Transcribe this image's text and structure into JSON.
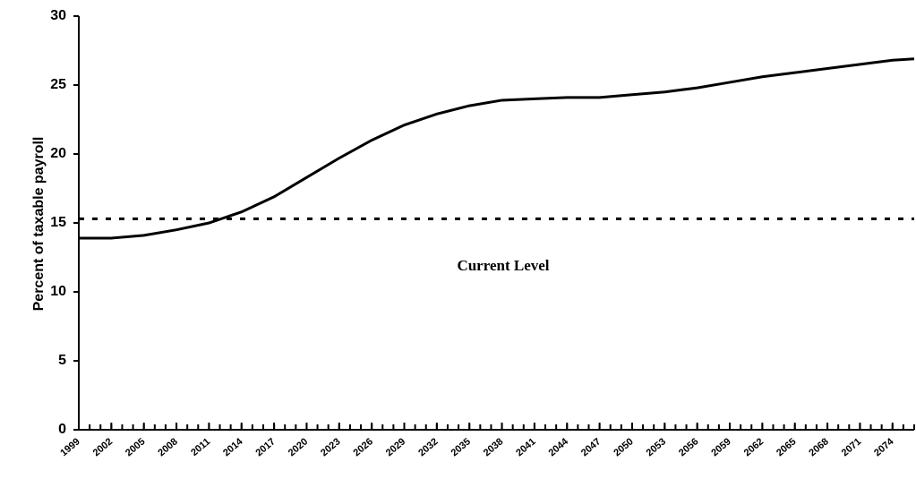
{
  "chart_data": {
    "type": "line",
    "ylabel": "Percent of taxable payroll",
    "annotation": "Current Level",
    "current_level": 15.3,
    "color": "#000000",
    "x": [
      1999,
      2002,
      2005,
      2008,
      2011,
      2014,
      2017,
      2020,
      2023,
      2026,
      2029,
      2032,
      2035,
      2038,
      2041,
      2044,
      2047,
      2050,
      2053,
      2056,
      2059,
      2062,
      2065,
      2068,
      2071,
      2074,
      2076
    ],
    "values": [
      13.9,
      13.9,
      14.1,
      14.5,
      15.0,
      15.8,
      16.9,
      18.3,
      19.7,
      21.0,
      22.1,
      22.9,
      23.5,
      23.9,
      24.0,
      24.1,
      24.1,
      24.3,
      24.5,
      24.8,
      25.2,
      25.6,
      25.9,
      26.2,
      26.5,
      26.8,
      26.9
    ],
    "xlim": [
      1999,
      2076
    ],
    "xticks": [
      1999,
      2002,
      2005,
      2008,
      2011,
      2014,
      2017,
      2020,
      2023,
      2026,
      2029,
      2032,
      2035,
      2038,
      2041,
      2044,
      2047,
      2050,
      2053,
      2056,
      2059,
      2062,
      2065,
      2068,
      2071,
      2074
    ],
    "ylim": [
      0,
      30
    ],
    "yticks": [
      0,
      5,
      10,
      15,
      20,
      25,
      30
    ]
  }
}
